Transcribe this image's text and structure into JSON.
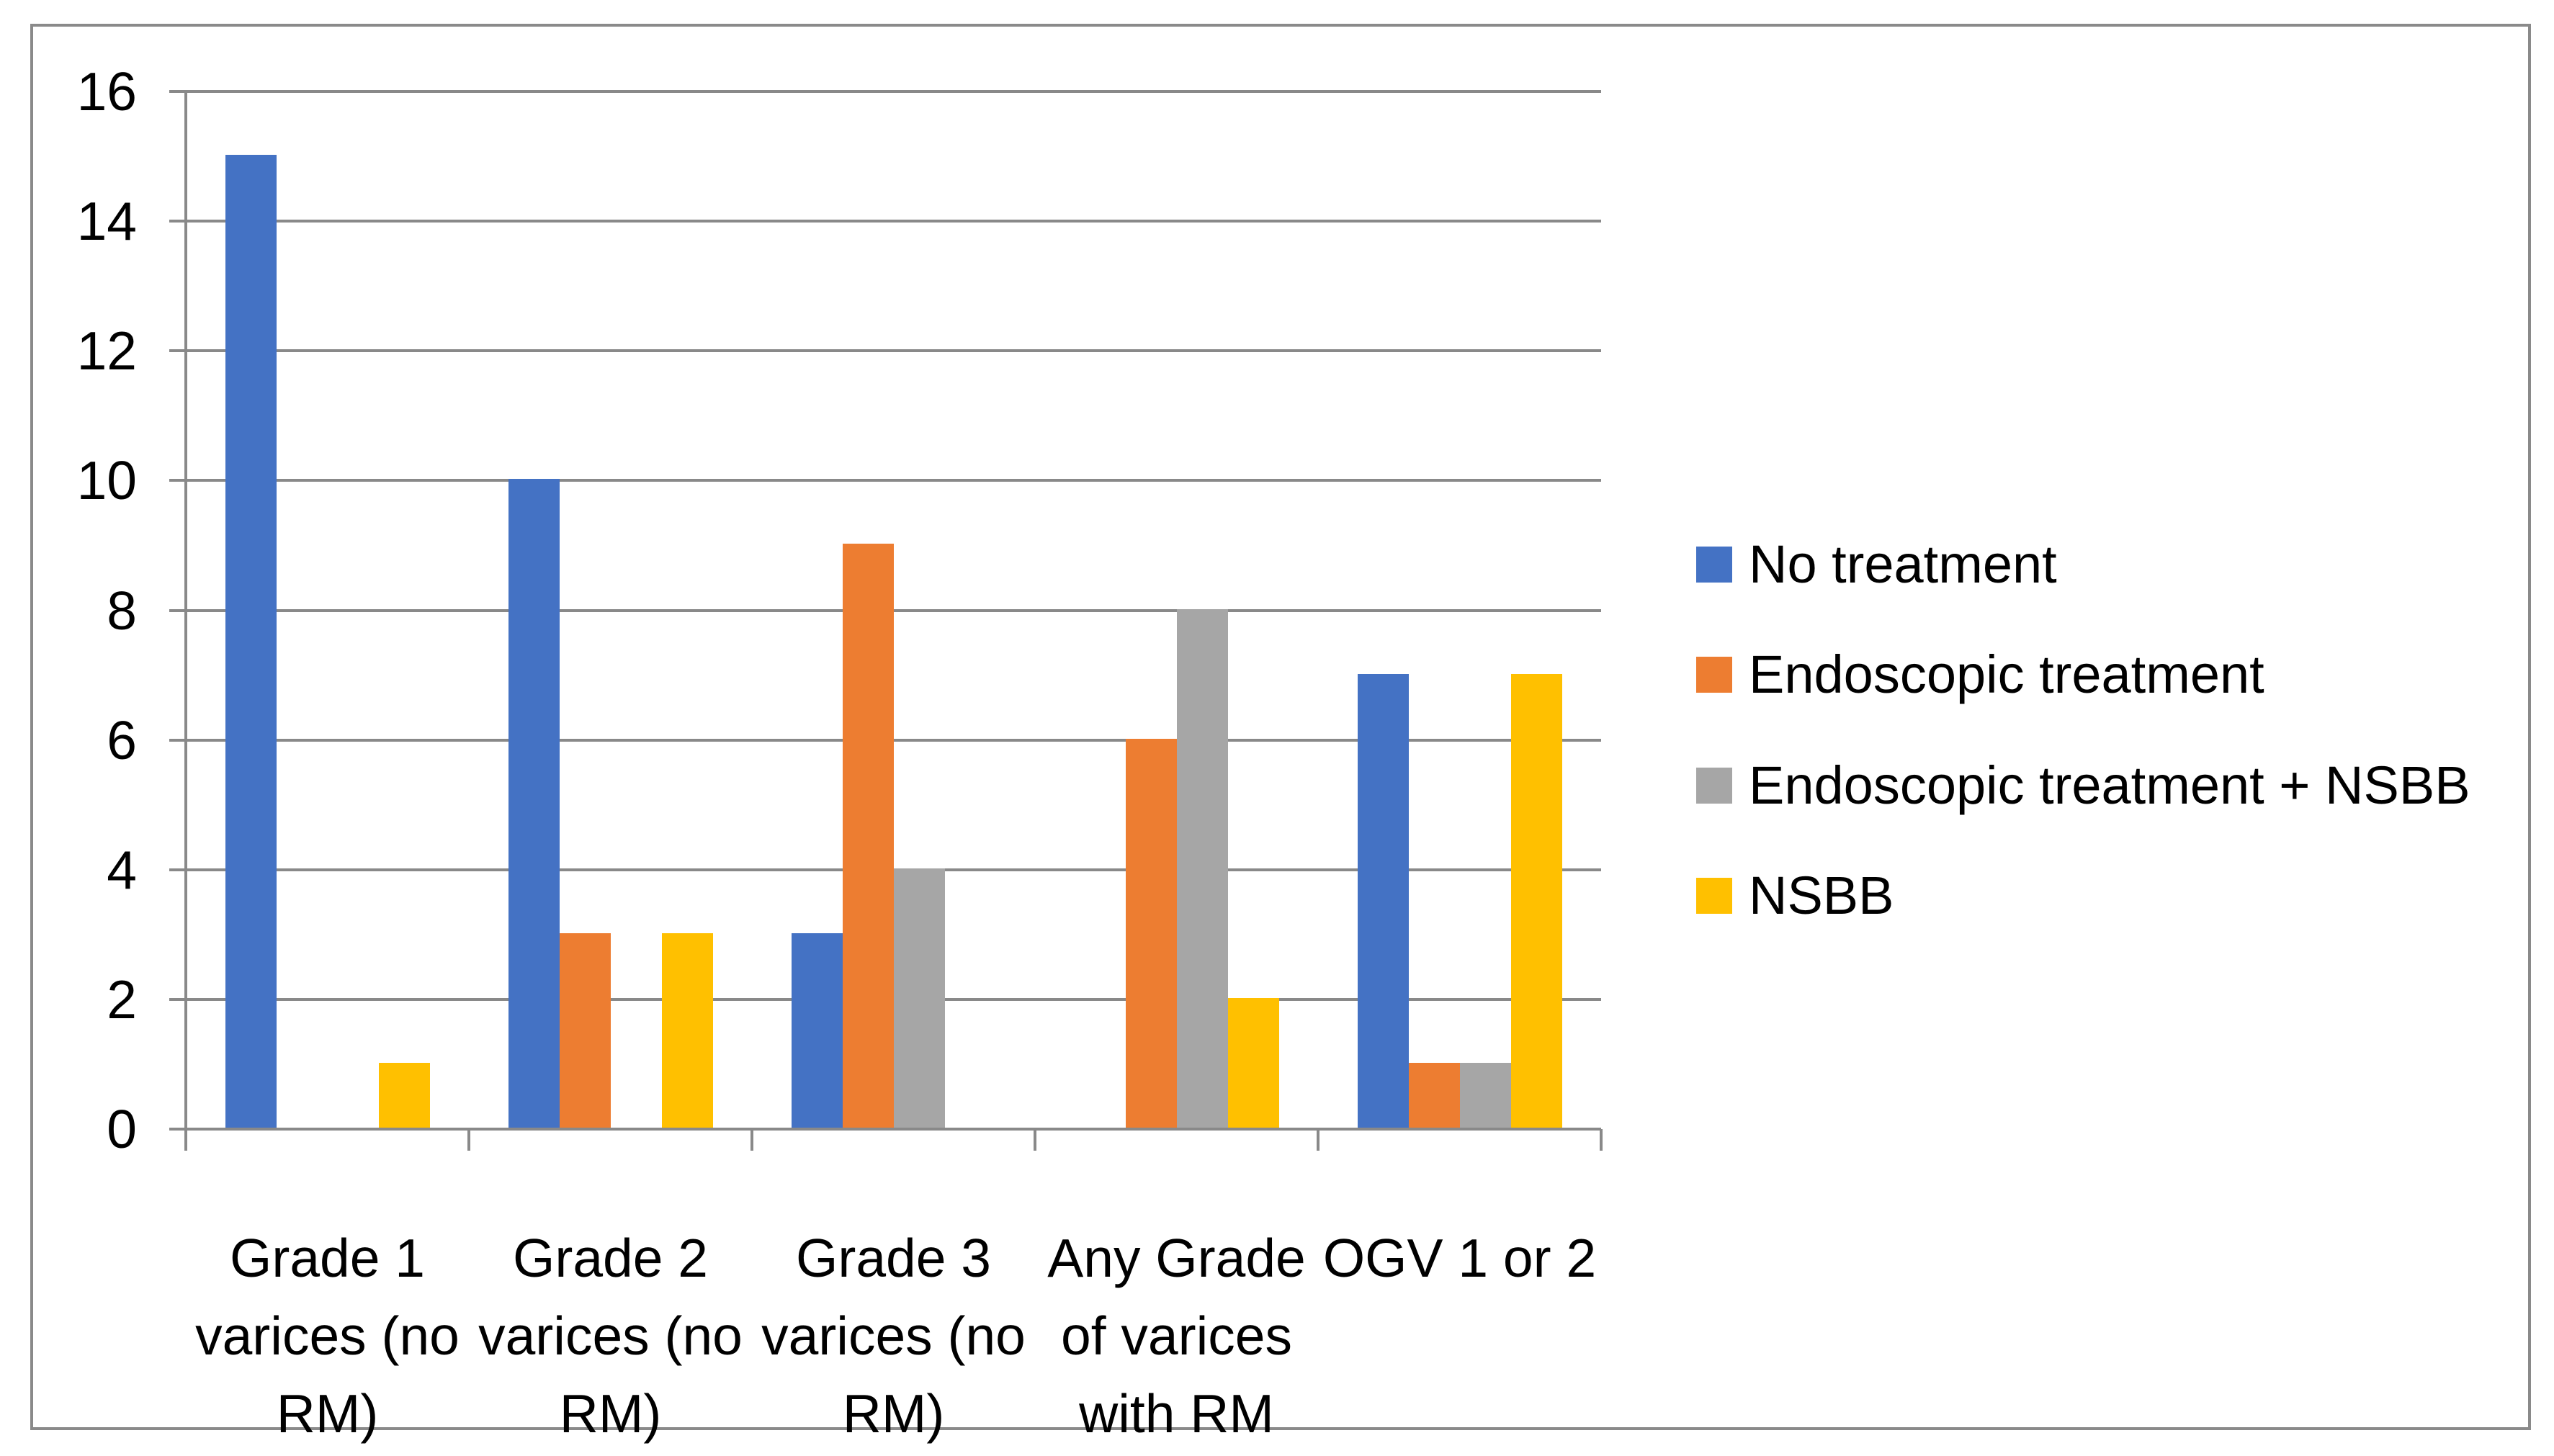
{
  "chart_data": {
    "type": "bar",
    "title": "",
    "xlabel": "",
    "ylabel": "",
    "categories": [
      {
        "label": "Grade 1 varices (no RM)",
        "lines": [
          "Grade 1",
          "varices (no",
          "RM)"
        ]
      },
      {
        "label": "Grade 2 varices (no RM)",
        "lines": [
          "Grade 2",
          "varices (no",
          "RM)"
        ]
      },
      {
        "label": "Grade 3 varices (no RM)",
        "lines": [
          "Grade 3",
          "varices (no",
          "RM)"
        ]
      },
      {
        "label": "Any Grade of varices with RM",
        "lines": [
          "Any Grade",
          "of varices",
          "with RM"
        ]
      },
      {
        "label": "OGV 1 or 2",
        "lines": [
          "OGV 1 or 2"
        ]
      }
    ],
    "series": [
      {
        "name": "No treatment",
        "color": "#4472C4",
        "values": [
          15,
          10,
          3,
          0,
          7
        ]
      },
      {
        "name": "Endoscopic treatment",
        "color": "#ED7D31",
        "values": [
          0,
          3,
          9,
          6,
          1
        ]
      },
      {
        "name": "Endoscopic treatment + NSBB",
        "color": "#A6A6A6",
        "values": [
          0,
          0,
          4,
          8,
          1
        ]
      },
      {
        "name": "NSBB",
        "color": "#FFC000",
        "values": [
          1,
          3,
          0,
          2,
          7
        ]
      }
    ],
    "ylim": [
      0,
      16
    ],
    "ytick_step": 2,
    "ytick_labels": [
      "0",
      "2",
      "4",
      "6",
      "8",
      "10",
      "12",
      "14",
      "16"
    ],
    "grid": true,
    "legend_position": "right"
  },
  "colors": {
    "axis": "#898989",
    "gridline": "#898989",
    "frame_border": "#8A8A8A",
    "background": "#FFFFFF",
    "text": "#000000"
  }
}
